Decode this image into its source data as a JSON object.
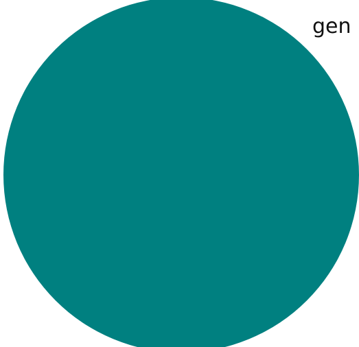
{
  "chart_data": {
    "type": "pie",
    "slices": [
      {
        "label": "gen",
        "value": 1,
        "color": "#008080"
      }
    ],
    "legend": {
      "visible": true,
      "placement": "top-right"
    },
    "title": "",
    "xlabel": "",
    "ylabel": ""
  }
}
